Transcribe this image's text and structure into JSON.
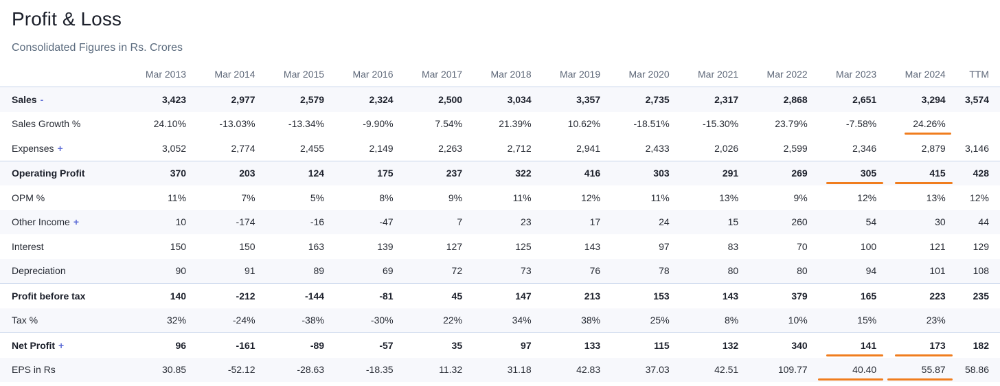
{
  "header": {
    "title": "Profit & Loss",
    "subtitle": "Consolidated Figures in Rs. Crores"
  },
  "columns": [
    "Mar 2013",
    "Mar 2014",
    "Mar 2015",
    "Mar 2016",
    "Mar 2017",
    "Mar 2018",
    "Mar 2019",
    "Mar 2020",
    "Mar 2021",
    "Mar 2022",
    "Mar 2023",
    "Mar 2024",
    "TTM"
  ],
  "rows": [
    {
      "label": "Sales",
      "toggle": "-",
      "values": [
        "3,423",
        "2,977",
        "2,579",
        "2,324",
        "2,500",
        "3,034",
        "3,357",
        "2,735",
        "2,317",
        "2,868",
        "2,651",
        "3,294",
        "3,574"
      ]
    },
    {
      "label": "Sales Growth %",
      "toggle": "",
      "values": [
        "24.10%",
        "-13.03%",
        "-13.34%",
        "-9.90%",
        "7.54%",
        "21.39%",
        "10.62%",
        "-18.51%",
        "-15.30%",
        "23.79%",
        "-7.58%",
        "24.26%",
        ""
      ]
    },
    {
      "label": "Expenses",
      "toggle": "+",
      "values": [
        "3,052",
        "2,774",
        "2,455",
        "2,149",
        "2,263",
        "2,712",
        "2,941",
        "2,433",
        "2,026",
        "2,599",
        "2,346",
        "2,879",
        "3,146"
      ]
    },
    {
      "label": "Operating Profit",
      "toggle": "",
      "values": [
        "370",
        "203",
        "124",
        "175",
        "237",
        "322",
        "416",
        "303",
        "291",
        "269",
        "305",
        "415",
        "428"
      ]
    },
    {
      "label": "OPM %",
      "toggle": "",
      "values": [
        "11%",
        "7%",
        "5%",
        "8%",
        "9%",
        "11%",
        "12%",
        "11%",
        "13%",
        "9%",
        "12%",
        "13%",
        "12%"
      ]
    },
    {
      "label": "Other Income",
      "toggle": "+",
      "values": [
        "10",
        "-174",
        "-16",
        "-47",
        "7",
        "23",
        "17",
        "24",
        "15",
        "260",
        "54",
        "30",
        "44"
      ]
    },
    {
      "label": "Interest",
      "toggle": "",
      "values": [
        "150",
        "150",
        "163",
        "139",
        "127",
        "125",
        "143",
        "97",
        "83",
        "70",
        "100",
        "121",
        "129"
      ]
    },
    {
      "label": "Depreciation",
      "toggle": "",
      "values": [
        "90",
        "91",
        "89",
        "69",
        "72",
        "73",
        "76",
        "78",
        "80",
        "80",
        "94",
        "101",
        "108"
      ]
    },
    {
      "label": "Profit before tax",
      "toggle": "",
      "values": [
        "140",
        "-212",
        "-144",
        "-81",
        "45",
        "147",
        "213",
        "153",
        "143",
        "379",
        "165",
        "223",
        "235"
      ]
    },
    {
      "label": "Tax %",
      "toggle": "",
      "values": [
        "32%",
        "-24%",
        "-38%",
        "-30%",
        "22%",
        "34%",
        "38%",
        "25%",
        "8%",
        "10%",
        "15%",
        "23%",
        ""
      ]
    },
    {
      "label": "Net Profit",
      "toggle": "+",
      "values": [
        "96",
        "-161",
        "-89",
        "-57",
        "35",
        "97",
        "133",
        "115",
        "132",
        "340",
        "141",
        "173",
        "182"
      ]
    },
    {
      "label": "EPS in Rs",
      "toggle": "",
      "values": [
        "30.85",
        "-52.12",
        "-28.63",
        "-18.35",
        "11.32",
        "31.18",
        "42.83",
        "37.03",
        "42.51",
        "109.77",
        "40.40",
        "55.87",
        "58.86"
      ]
    }
  ],
  "highlight_color": "#f07d1e"
}
